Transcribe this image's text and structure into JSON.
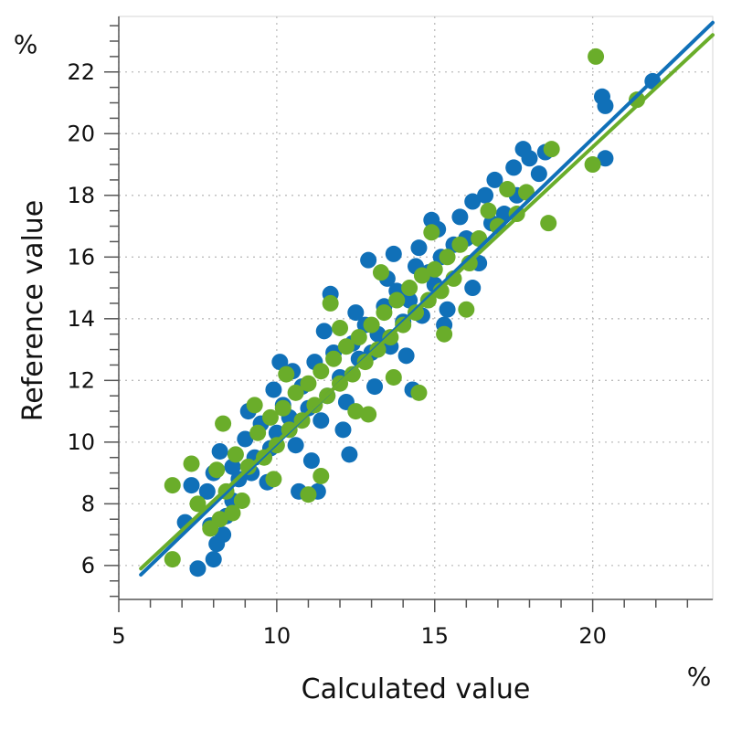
{
  "chart_data": {
    "type": "scatter",
    "title": "",
    "xlabel": "Calculated value",
    "ylabel": "Reference value",
    "x_unit": "%",
    "y_unit": "%",
    "xlim": [
      5,
      23.8
    ],
    "ylim": [
      4.9,
      23.8
    ],
    "x_ticks": [
      5,
      10,
      15,
      20
    ],
    "y_ticks": [
      6,
      8,
      10,
      12,
      14,
      16,
      18,
      20,
      22
    ],
    "grid": true,
    "legend": "none",
    "colors": {
      "blue": "#1070b8",
      "green": "#6aad2a"
    },
    "series": [
      {
        "color": "#1070b8",
        "fit_line": [
          [
            5.7,
            5.7
          ],
          [
            23.8,
            23.6
          ]
        ],
        "points": [
          [
            7.5,
            5.9
          ],
          [
            7.1,
            7.4
          ],
          [
            7.3,
            8.6
          ],
          [
            7.8,
            8.4
          ],
          [
            8.0,
            6.2
          ],
          [
            8.1,
            6.7
          ],
          [
            8.3,
            7.0
          ],
          [
            7.9,
            7.3
          ],
          [
            8.4,
            7.6
          ],
          [
            8.6,
            8.1
          ],
          [
            8.0,
            9.0
          ],
          [
            8.2,
            9.7
          ],
          [
            8.6,
            9.2
          ],
          [
            8.8,
            8.8
          ],
          [
            9.0,
            10.1
          ],
          [
            9.3,
            9.5
          ],
          [
            9.5,
            10.6
          ],
          [
            9.2,
            9.0
          ],
          [
            9.7,
            8.7
          ],
          [
            9.8,
            9.8
          ],
          [
            10.0,
            10.3
          ],
          [
            10.2,
            11.2
          ],
          [
            9.9,
            11.7
          ],
          [
            10.4,
            10.8
          ],
          [
            10.6,
            9.9
          ],
          [
            10.8,
            11.8
          ],
          [
            10.5,
            12.3
          ],
          [
            11.0,
            11.1
          ],
          [
            11.2,
            12.6
          ],
          [
            11.4,
            10.7
          ],
          [
            11.1,
            9.4
          ],
          [
            11.6,
            11.5
          ],
          [
            11.8,
            12.9
          ],
          [
            11.5,
            13.6
          ],
          [
            12.0,
            12.1
          ],
          [
            12.2,
            11.3
          ],
          [
            12.4,
            13.2
          ],
          [
            12.1,
            10.4
          ],
          [
            12.6,
            12.7
          ],
          [
            12.8,
            13.8
          ],
          [
            12.5,
            14.2
          ],
          [
            13.0,
            12.9
          ],
          [
            13.2,
            13.5
          ],
          [
            13.4,
            14.4
          ],
          [
            13.1,
            11.8
          ],
          [
            13.6,
            13.1
          ],
          [
            13.8,
            14.9
          ],
          [
            13.5,
            15.3
          ],
          [
            14.0,
            13.9
          ],
          [
            14.2,
            14.6
          ],
          [
            14.4,
            15.7
          ],
          [
            14.1,
            12.8
          ],
          [
            14.6,
            14.1
          ],
          [
            14.8,
            15.5
          ],
          [
            14.5,
            16.3
          ],
          [
            15.0,
            15.1
          ],
          [
            15.2,
            16.0
          ],
          [
            15.4,
            14.3
          ],
          [
            15.1,
            16.9
          ],
          [
            15.6,
            16.4
          ],
          [
            15.8,
            17.3
          ],
          [
            16.0,
            16.6
          ],
          [
            16.2,
            17.8
          ],
          [
            16.4,
            15.8
          ],
          [
            16.6,
            18.0
          ],
          [
            16.8,
            17.1
          ],
          [
            16.9,
            18.5
          ],
          [
            17.2,
            17.4
          ],
          [
            17.5,
            18.9
          ],
          [
            17.8,
            19.5
          ],
          [
            17.6,
            18.0
          ],
          [
            18.0,
            19.2
          ],
          [
            18.3,
            18.7
          ],
          [
            18.5,
            19.4
          ],
          [
            16.2,
            15.0
          ],
          [
            15.3,
            13.8
          ],
          [
            14.9,
            17.2
          ],
          [
            12.3,
            9.6
          ],
          [
            11.7,
            14.8
          ],
          [
            10.1,
            12.6
          ],
          [
            9.1,
            11.0
          ],
          [
            10.7,
            8.4
          ],
          [
            13.7,
            16.1
          ],
          [
            20.3,
            21.2
          ],
          [
            20.4,
            20.9
          ],
          [
            20.4,
            19.2
          ],
          [
            21.9,
            21.7
          ],
          [
            12.9,
            15.9
          ],
          [
            11.3,
            8.4
          ],
          [
            14.3,
            11.7
          ]
        ]
      },
      {
        "color": "#6aad2a",
        "fit_line": [
          [
            5.7,
            5.9
          ],
          [
            23.8,
            23.2
          ]
        ],
        "points": [
          [
            6.7,
            6.2
          ],
          [
            6.7,
            8.6
          ],
          [
            7.3,
            9.3
          ],
          [
            7.5,
            8.0
          ],
          [
            7.9,
            7.2
          ],
          [
            8.2,
            7.5
          ],
          [
            8.1,
            9.1
          ],
          [
            8.4,
            8.4
          ],
          [
            8.3,
            10.6
          ],
          [
            8.7,
            9.6
          ],
          [
            8.9,
            8.1
          ],
          [
            9.1,
            9.2
          ],
          [
            9.4,
            10.3
          ],
          [
            9.6,
            9.5
          ],
          [
            9.8,
            10.8
          ],
          [
            10.0,
            9.9
          ],
          [
            10.2,
            11.1
          ],
          [
            10.4,
            10.4
          ],
          [
            10.6,
            11.6
          ],
          [
            10.8,
            10.7
          ],
          [
            11.0,
            11.9
          ],
          [
            11.2,
            11.2
          ],
          [
            11.4,
            12.3
          ],
          [
            11.6,
            11.5
          ],
          [
            11.8,
            12.7
          ],
          [
            12.0,
            11.9
          ],
          [
            12.2,
            13.1
          ],
          [
            12.4,
            12.2
          ],
          [
            12.6,
            13.4
          ],
          [
            12.8,
            12.6
          ],
          [
            13.0,
            13.8
          ],
          [
            13.2,
            13.0
          ],
          [
            13.4,
            14.2
          ],
          [
            13.6,
            13.4
          ],
          [
            13.8,
            14.6
          ],
          [
            14.0,
            13.8
          ],
          [
            14.2,
            15.0
          ],
          [
            14.4,
            14.2
          ],
          [
            14.6,
            15.4
          ],
          [
            14.8,
            14.6
          ],
          [
            15.0,
            15.6
          ],
          [
            15.2,
            14.9
          ],
          [
            15.4,
            16.0
          ],
          [
            15.6,
            15.3
          ],
          [
            15.8,
            16.4
          ],
          [
            16.1,
            15.8
          ],
          [
            16.4,
            16.6
          ],
          [
            16.7,
            17.5
          ],
          [
            17.0,
            17.0
          ],
          [
            17.3,
            18.2
          ],
          [
            17.6,
            17.4
          ],
          [
            17.9,
            18.1
          ],
          [
            18.6,
            17.1
          ],
          [
            18.7,
            19.5
          ],
          [
            11.7,
            14.5
          ],
          [
            12.0,
            13.7
          ],
          [
            11.4,
            8.9
          ],
          [
            11.0,
            8.3
          ],
          [
            13.7,
            12.1
          ],
          [
            14.5,
            11.6
          ],
          [
            10.3,
            12.2
          ],
          [
            9.3,
            11.2
          ],
          [
            12.9,
            10.9
          ],
          [
            15.3,
            13.5
          ],
          [
            14.9,
            16.8
          ],
          [
            16.0,
            14.3
          ],
          [
            9.9,
            8.8
          ],
          [
            8.6,
            7.7
          ],
          [
            12.5,
            11.0
          ],
          [
            13.3,
            15.5
          ],
          [
            20.1,
            22.5
          ],
          [
            20.0,
            19.0
          ],
          [
            21.4,
            21.1
          ]
        ]
      }
    ]
  }
}
